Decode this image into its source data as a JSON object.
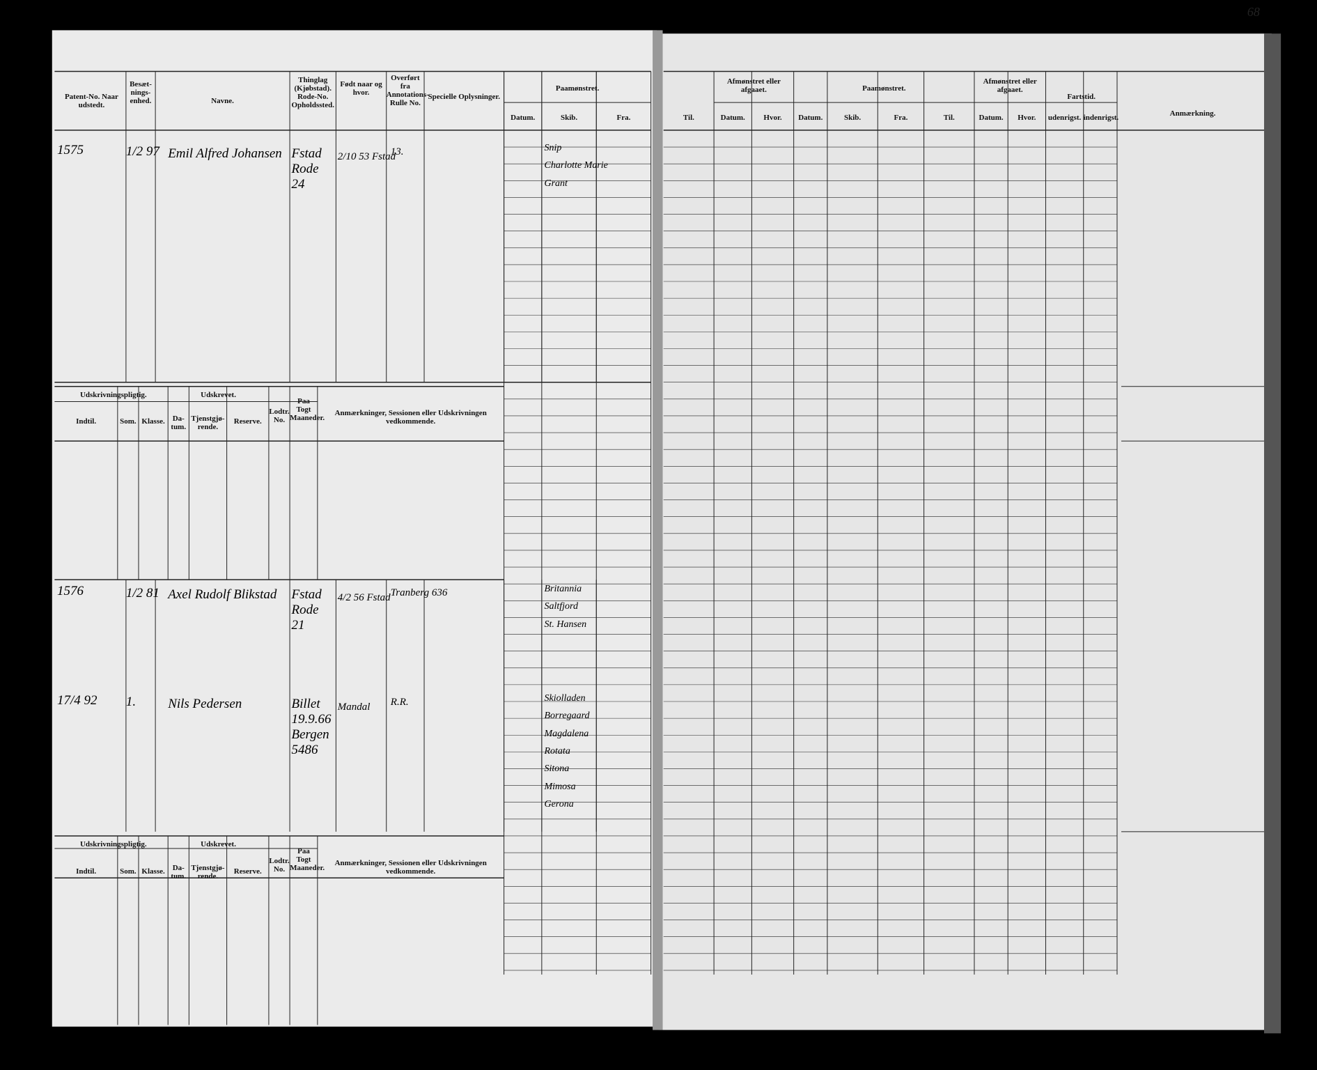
{
  "page_number": "68",
  "left_header": {
    "patent": "Patent-No. Naar udstedt.",
    "besaetning": "Besæt-nings-enhed.",
    "navne": "Navne.",
    "thinglag": "Thinglag (Kjøbstad). Rode-No. Opholdssted.",
    "fodt": "Født naar og hvor.",
    "overfort": "Overført fra Annotations-Rulle No.",
    "specielle": "Specielle Oplysninger.",
    "paamonstret": "Paamønstret.",
    "datum": "Datum.",
    "skib": "Skib.",
    "fra": "Fra."
  },
  "right_header": {
    "til": "Til.",
    "afmonstret": "Afmønstret eller afgaaet.",
    "datum": "Datum.",
    "hvor": "Hvor.",
    "paamonstret": "Paamønstret.",
    "p_datum": "Datum.",
    "p_skib": "Skib.",
    "p_fra": "Fra.",
    "p_til": "Til.",
    "afmonstret2": "Afmønstret eller afgaaet.",
    "a_datum": "Datum.",
    "a_hvor": "Hvor.",
    "fartstid": "Fartstid.",
    "udenrigst": "udenrigst.",
    "indenrigst": "indenrigst.",
    "anmaerkning": "Anmærkning."
  },
  "lower_header": {
    "udskrivningspligtig": "Udskrivningspligtig.",
    "indtil": "Indtil.",
    "som": "Som.",
    "klasse": "Klasse.",
    "udskrevet": "Udskrevet.",
    "datum": "Da-tum.",
    "tjenstgjorende": "Tjenstgjø-rende.",
    "reserve": "Reserve.",
    "lodtr": "Lodtr. No.",
    "paa_togt": "Paa Togt Maaneder.",
    "anmaerkninger": "Anmærkninger, Sessionen eller Udskrivningen vedkommende."
  },
  "entries": [
    {
      "number": "1575",
      "issued": "1/2 97",
      "name": "Emil Alfred Johansen",
      "place": "Fstad Rode 24",
      "born": "2/10 53 Fstad",
      "roll": "13.",
      "ships": [
        "Snip",
        "Charlotte Marie",
        "Grant"
      ]
    },
    {
      "number": "1576",
      "issued": "1/2 81",
      "name": "Axel Rudolf Blikstad",
      "place": "Fstad Rode 21",
      "born": "4/2 56 Fstad",
      "roll": "Tranberg 636",
      "ships": [
        "Britannia",
        "Saltfjord",
        "St. Hansen"
      ]
    },
    {
      "number": "17/4 92",
      "issued": "1.",
      "name": "Nils Pedersen",
      "place": "Billet 19.9.66 Bergen 5486",
      "born": "Mandal",
      "roll": "R.R.",
      "ships": [
        "Skiolladen",
        "Borregaard",
        "Magdalena",
        "Rotata",
        "Sitona",
        "Mimosa",
        "Gerona"
      ]
    }
  ]
}
